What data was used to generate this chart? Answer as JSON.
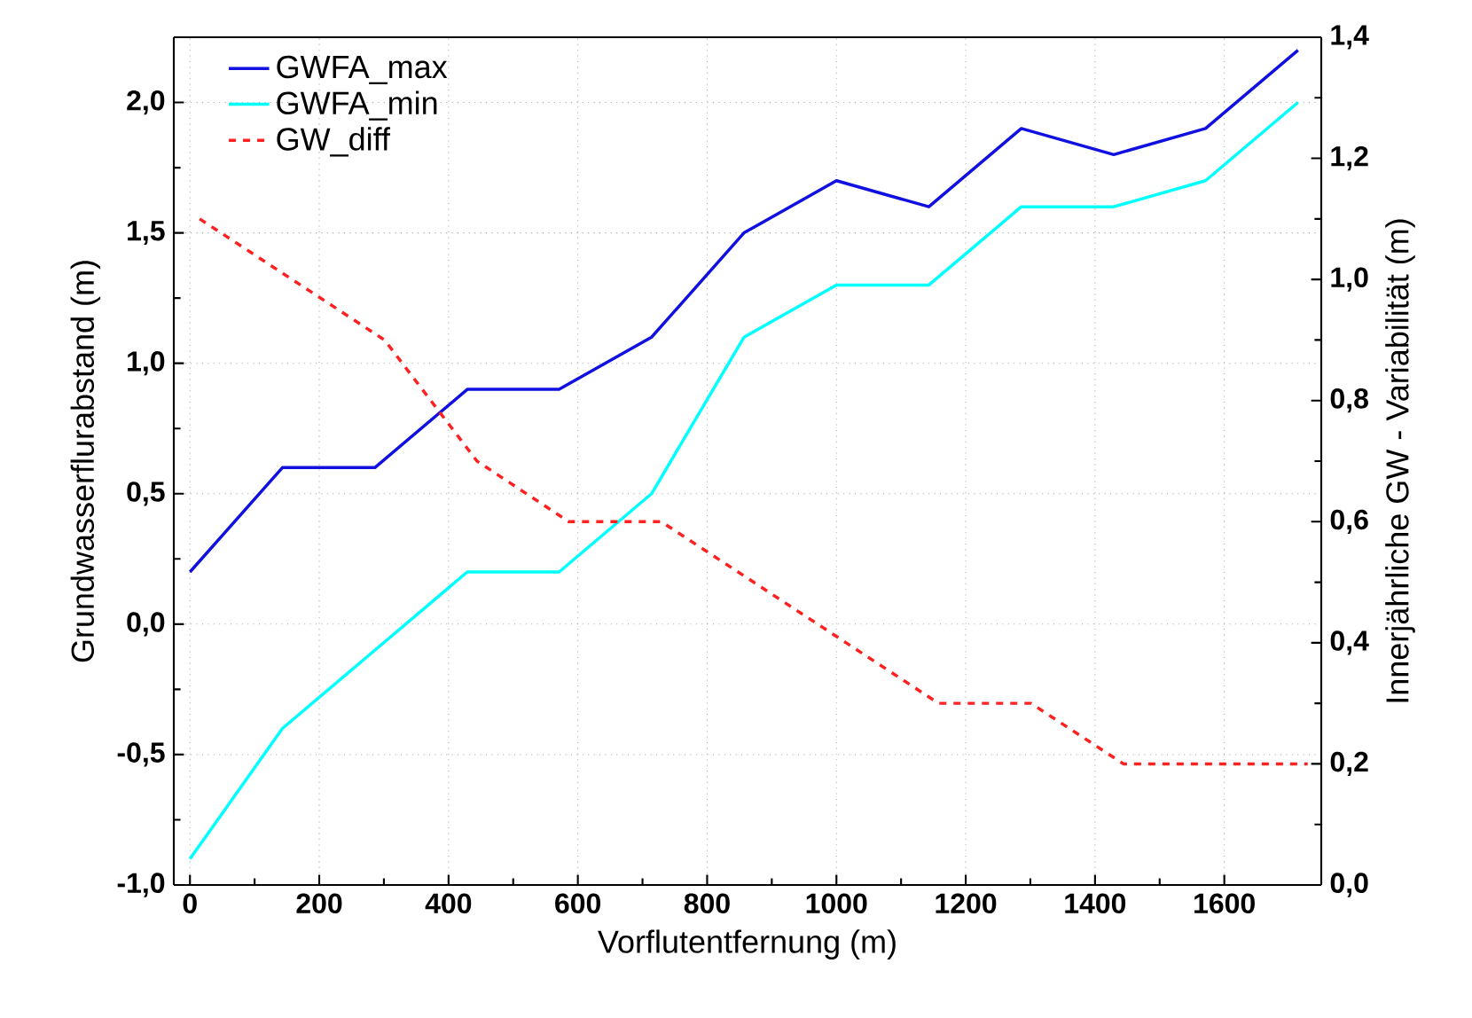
{
  "chart_data": {
    "type": "line",
    "xlabel": "Vorflutentfernung (m)",
    "ylabel": "Grundwasserflurabstand (m)",
    "y2label": "Innerjährliche GW - Variabilität  (m)",
    "series": [
      {
        "name": "GWFA_max",
        "color": "#1010e0",
        "x": [
          0,
          143,
          286,
          429,
          571,
          714,
          857,
          1000,
          1143,
          1286,
          1429,
          1571,
          1714
        ],
        "values": [
          0.2,
          0.6,
          0.6,
          0.9,
          0.9,
          1.1,
          1.5,
          1.7,
          1.6,
          1.9,
          1.8,
          1.9,
          2.2
        ]
      },
      {
        "name": "GWFA_min",
        "color": "#00ffff",
        "x": [
          0,
          143,
          286,
          429,
          571,
          714,
          857,
          1000,
          1143,
          1286,
          1429,
          1571,
          1714
        ],
        "values": [
          -0.9,
          -0.4,
          -0.1,
          0.2,
          0.2,
          0.5,
          1.1,
          1.3,
          1.3,
          1.6,
          1.6,
          1.7,
          2.0
        ]
      },
      {
        "name": "GW_diff",
        "color": "#ff2020",
        "axis": "y2",
        "line_style": "dashed",
        "x": [
          15,
          158,
          301,
          444,
          586,
          729,
          872,
          1015,
          1158,
          1301,
          1444,
          1586,
          1729
        ],
        "values": [
          1.1,
          1.0,
          0.9,
          0.7,
          0.6,
          0.6,
          0.5,
          0.4,
          0.3,
          0.3,
          0.2,
          0.2,
          0.2
        ]
      }
    ],
    "xlim": [
      -25,
      1750
    ],
    "xticks": [
      0,
      200,
      400,
      600,
      800,
      1000,
      1200,
      1400,
      1600
    ],
    "ylim": [
      -1.0,
      2.25
    ],
    "yticks": [
      {
        "value": -1.0,
        "label": "-1,0"
      },
      {
        "value": -0.5,
        "label": "-0,5"
      },
      {
        "value": 0.0,
        "label": "0,0"
      },
      {
        "value": 0.5,
        "label": "0,5"
      },
      {
        "value": 1.0,
        "label": "1,0"
      },
      {
        "value": 1.5,
        "label": "1,5"
      },
      {
        "value": 2.0,
        "label": "2,0"
      }
    ],
    "y2lim": [
      0.0,
      1.4
    ],
    "y2ticks": [
      {
        "value": 0.0,
        "label": "0,0"
      },
      {
        "value": 0.2,
        "label": "0,2"
      },
      {
        "value": 0.4,
        "label": "0,4"
      },
      {
        "value": 0.6,
        "label": "0,6"
      },
      {
        "value": 0.8,
        "label": "0,8"
      },
      {
        "value": 1.0,
        "label": "1,0"
      },
      {
        "value": 1.2,
        "label": "1,2"
      },
      {
        "value": 1.4,
        "label": "1,4"
      }
    ],
    "grid": true,
    "legend": "top left",
    "marker": "none"
  }
}
